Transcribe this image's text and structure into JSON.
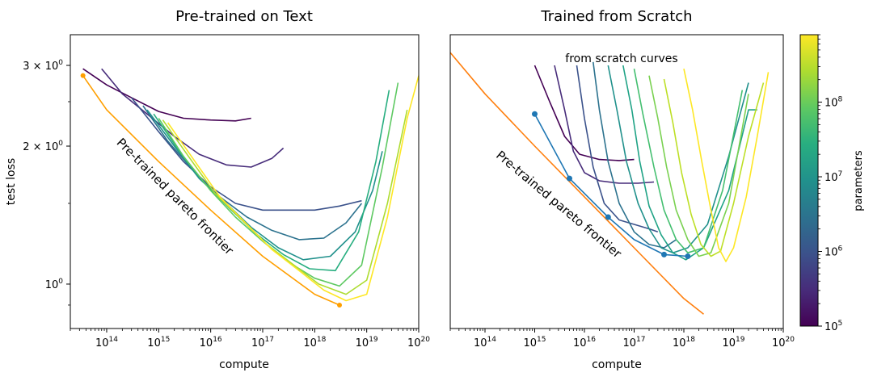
{
  "chart_data": [
    {
      "type": "line",
      "title": "Pre-trained on Text",
      "xlabel": "compute",
      "ylabel": "test loss",
      "xscale": "log",
      "yscale": "log",
      "xlim": [
        20000000000000.0,
        1e+20
      ],
      "ylim": [
        0.8,
        3.5
      ],
      "x_ticks": [
        {
          "exp": 14,
          "label_base": "10",
          "label_exp": "14"
        },
        {
          "exp": 15,
          "label_base": "10",
          "label_exp": "15"
        },
        {
          "exp": 16,
          "label_base": "10",
          "label_exp": "16"
        },
        {
          "exp": 17,
          "label_base": "10",
          "label_exp": "17"
        },
        {
          "exp": 18,
          "label_base": "10",
          "label_exp": "18"
        },
        {
          "exp": 19,
          "label_base": "10",
          "label_exp": "19"
        },
        {
          "exp": 20,
          "label_base": "10",
          "label_exp": "20"
        }
      ],
      "y_ticks": [
        {
          "value": 3,
          "label": "3 × 10",
          "label_exp": "0"
        },
        {
          "value": 2,
          "label": "2 × 10",
          "label_exp": "0"
        },
        {
          "value": 1,
          "label": "10",
          "label_exp": "0"
        }
      ],
      "annotation": {
        "text": "Pre-trained pareto frontier",
        "color": "#000000"
      },
      "frontier": {
        "color": "#ff9f00",
        "x": [
          35000000000000.0,
          100000000000000.0,
          1000000000000000.0,
          1e+16,
          1e+17,
          1e+18,
          3e+18
        ],
        "y": [
          2.85,
          2.4,
          1.85,
          1.45,
          1.15,
          0.95,
          0.9
        ]
      },
      "series": [
        {
          "params": 100000.0,
          "color": "#440154",
          "x": [
            35000000000000.0,
            100000000000000.0,
            300000000000000.0,
            1000000000000000.0,
            3000000000000000.0,
            1e+16,
            3e+16,
            6e+16
          ],
          "y": [
            2.95,
            2.72,
            2.55,
            2.38,
            2.3,
            2.28,
            2.27,
            2.3
          ]
        },
        {
          "params": 300000.0,
          "color": "#472c7a",
          "x": [
            80000000000000.0,
            200000000000000.0,
            600000000000000.0,
            2000000000000000.0,
            6000000000000000.0,
            2e+16,
            6e+16,
            1.5e+17,
            2.5e+17
          ],
          "y": [
            2.95,
            2.6,
            2.35,
            2.1,
            1.92,
            1.82,
            1.8,
            1.88,
            1.98
          ]
        },
        {
          "params": 1000000.0,
          "color": "#3b528b",
          "x": [
            300000000000000.0,
            1000000000000000.0,
            3000000000000000.0,
            1e+16,
            3e+16,
            1e+17,
            3e+17,
            1e+18,
            3e+18,
            8e+18
          ],
          "y": [
            2.55,
            2.15,
            1.85,
            1.63,
            1.5,
            1.45,
            1.45,
            1.45,
            1.48,
            1.52
          ]
        },
        {
          "params": 3000000.0,
          "color": "#2c728e",
          "x": [
            500000000000000.0,
            1500000000000000.0,
            5000000000000000.0,
            1.5e+16,
            5e+16,
            1.5e+17,
            5e+17,
            1.5e+18,
            4e+18,
            8e+18
          ],
          "y": [
            2.45,
            2.05,
            1.75,
            1.55,
            1.4,
            1.31,
            1.25,
            1.26,
            1.36,
            1.5
          ]
        },
        {
          "params": 10000000.0,
          "color": "#21918c",
          "x": [
            600000000000000.0,
            2000000000000000.0,
            6000000000000000.0,
            2e+16,
            6e+16,
            2e+17,
            6e+17,
            2e+18,
            6e+18,
            1.3e+19,
            2e+19
          ],
          "y": [
            2.4,
            2.0,
            1.7,
            1.5,
            1.33,
            1.2,
            1.13,
            1.15,
            1.3,
            1.6,
            1.95
          ]
        },
        {
          "params": 30000000.0,
          "color": "#28ae80",
          "x": [
            800000000000000.0,
            2500000000000000.0,
            8000000000000000.0,
            2.5e+16,
            8e+16,
            2.5e+17,
            8e+17,
            2.5e+18,
            7e+18,
            1.5e+19,
            2.7e+19
          ],
          "y": [
            2.35,
            1.95,
            1.65,
            1.45,
            1.28,
            1.16,
            1.08,
            1.07,
            1.3,
            1.85,
            2.65
          ]
        },
        {
          "params": 100000000.0,
          "color": "#5ec962",
          "x": [
            1000000000000000.0,
            3000000000000000.0,
            1e+16,
            3e+16,
            1e+17,
            3e+17,
            1e+18,
            3e+18,
            8e+18,
            2e+19,
            4e+19
          ],
          "y": [
            2.3,
            1.9,
            1.6,
            1.4,
            1.24,
            1.12,
            1.03,
            0.99,
            1.1,
            1.8,
            2.75
          ]
        },
        {
          "params": 300000000.0,
          "color": "#addc30",
          "x": [
            1200000000000000.0,
            4000000000000000.0,
            1.2e+16,
            4e+16,
            1.2e+17,
            4e+17,
            1.2e+18,
            4e+18,
            1e+19,
            2.5e+19,
            6e+19
          ],
          "y": [
            2.28,
            1.88,
            1.58,
            1.38,
            1.22,
            1.1,
            1.0,
            0.95,
            1.02,
            1.5,
            2.4
          ]
        },
        {
          "params": 800000000.0,
          "color": "#fde725",
          "x": [
            1500000000000000.0,
            5000000000000000.0,
            1.5e+16,
            5e+16,
            1.5e+17,
            5e+17,
            1.5e+18,
            4e+18,
            1e+19,
            2.5e+19,
            6e+19,
            1e+20
          ],
          "y": [
            2.25,
            1.85,
            1.55,
            1.35,
            1.19,
            1.07,
            0.97,
            0.92,
            0.95,
            1.4,
            2.3,
            2.85
          ]
        }
      ]
    },
    {
      "type": "line",
      "title": "Trained from Scratch",
      "xlabel": "compute",
      "ylabel": "",
      "xscale": "log",
      "yscale": "log",
      "xlim": [
        20000000000000.0,
        1e+20
      ],
      "ylim": [
        0.8,
        3.5
      ],
      "x_ticks": [
        {
          "exp": 14,
          "label_base": "10",
          "label_exp": "14"
        },
        {
          "exp": 15,
          "label_base": "10",
          "label_exp": "15"
        },
        {
          "exp": 16,
          "label_base": "10",
          "label_exp": "16"
        },
        {
          "exp": 17,
          "label_base": "10",
          "label_exp": "17"
        },
        {
          "exp": 18,
          "label_base": "10",
          "label_exp": "18"
        },
        {
          "exp": 19,
          "label_base": "10",
          "label_exp": "19"
        },
        {
          "exp": 20,
          "label_base": "10",
          "label_exp": "20"
        }
      ],
      "annotations": [
        {
          "text": "from scratch curves"
        },
        {
          "text": "Pre-trained pareto frontier"
        }
      ],
      "frontier": {
        "color": "#ff7f0e",
        "x": [
          20000000000000.0,
          100000000000000.0,
          1000000000000000.0,
          1e+16,
          1e+17,
          1e+18,
          2.5e+18
        ],
        "y": [
          3.2,
          2.6,
          2.0,
          1.55,
          1.2,
          0.93,
          0.86
        ]
      },
      "scratch_frontier": {
        "color": "#1f77b4",
        "x": [
          1000000000000000.0,
          5000000000000000.0,
          3e+16,
          1e+17,
          4e+17,
          1.2e+18
        ],
        "y": [
          2.35,
          1.7,
          1.4,
          1.25,
          1.16,
          1.15
        ],
        "markers": [
          [
            1000000000000000.0,
            2.35
          ],
          [
            5000000000000000.0,
            1.7
          ],
          [
            3e+16,
            1.4
          ],
          [
            4e+17,
            1.16
          ],
          [
            1.2e+18,
            1.15
          ]
        ]
      },
      "series": [
        {
          "params": 100000.0,
          "color": "#440154",
          "x": [
            1000000000000000.0,
            2000000000000000.0,
            4000000000000000.0,
            8000000000000000.0,
            2e+16,
            5e+16,
            1e+17
          ],
          "y": [
            3.0,
            2.5,
            2.1,
            1.92,
            1.87,
            1.86,
            1.87
          ]
        },
        {
          "params": 300000.0,
          "color": "#472c7a",
          "x": [
            2500000000000000.0,
            4000000000000000.0,
            6000000000000000.0,
            1e+16,
            2e+16,
            5e+16,
            1.2e+17,
            2.5e+17
          ],
          "y": [
            3.0,
            2.4,
            1.95,
            1.75,
            1.68,
            1.66,
            1.66,
            1.67
          ]
        },
        {
          "params": 1000000.0,
          "color": "#3b528b",
          "x": [
            7000000000000000.0,
            1e+16,
            1.5e+16,
            2.5e+16,
            5e+16,
            1e+17,
            2e+17,
            3e+17
          ],
          "y": [
            3.0,
            2.3,
            1.8,
            1.5,
            1.38,
            1.35,
            1.32,
            1.3
          ]
        },
        {
          "params": 3000000.0,
          "color": "#2c728e",
          "x": [
            1.5e+16,
            2e+16,
            3e+16,
            5e+16,
            1e+17,
            2e+17,
            4e+17,
            7e+17
          ],
          "y": [
            3.05,
            2.4,
            1.85,
            1.5,
            1.3,
            1.22,
            1.2,
            1.25
          ]
        },
        {
          "params": 10000000.0,
          "color": "#21918c",
          "x": [
            3e+16,
            4.5e+16,
            7e+16,
            1.2e+17,
            2e+17,
            3.5e+17,
            6e+17,
            1.2e+18,
            3e+18,
            8e+18,
            2e+19
          ],
          "y": [
            3.0,
            2.4,
            1.85,
            1.5,
            1.32,
            1.2,
            1.17,
            1.2,
            1.35,
            1.9,
            2.75
          ]
        },
        {
          "params": 20000000.0,
          "color": "#20a386",
          "x": [
            6e+16,
            9e+16,
            1.3e+17,
            2e+17,
            3.5e+17,
            6e+17,
            1.1e+18,
            2.5e+18,
            8e+18,
            2e+19,
            3e+19
          ],
          "y": [
            3.0,
            2.4,
            1.85,
            1.48,
            1.28,
            1.17,
            1.13,
            1.2,
            1.6,
            2.4,
            2.4
          ]
        },
        {
          "params": 50000000.0,
          "color": "#44bf70",
          "x": [
            1e+17,
            1.5e+17,
            2.5e+17,
            4e+17,
            7e+17,
            1.2e+18,
            2.5e+18,
            6e+18,
            1.5e+19
          ],
          "y": [
            2.95,
            2.35,
            1.8,
            1.45,
            1.25,
            1.17,
            1.2,
            1.6,
            2.65
          ]
        },
        {
          "params": 100000000.0,
          "color": "#7ad151",
          "x": [
            2e+17,
            3e+17,
            4.5e+17,
            7e+17,
            1.2e+18,
            2e+18,
            3.5e+18,
            8e+18,
            2e+19
          ],
          "y": [
            2.85,
            2.3,
            1.8,
            1.45,
            1.25,
            1.15,
            1.17,
            1.5,
            2.6
          ]
        },
        {
          "params": 300000000.0,
          "color": "#bddf26",
          "x": [
            4e+17,
            6e+17,
            9e+17,
            1.4e+18,
            2.2e+18,
            3.5e+18,
            5.5e+18,
            1e+19,
            2e+19,
            4e+19
          ],
          "y": [
            2.8,
            2.25,
            1.75,
            1.42,
            1.22,
            1.15,
            1.18,
            1.5,
            2.1,
            2.75
          ]
        },
        {
          "params": 800000000.0,
          "color": "#fde725",
          "x": [
            1e+18,
            1.5e+18,
            2.3e+18,
            3.5e+18,
            5e+18,
            7e+18,
            1e+19,
            1.8e+19,
            3e+19,
            5e+19
          ],
          "y": [
            2.95,
            2.4,
            1.85,
            1.45,
            1.2,
            1.12,
            1.2,
            1.55,
            2.1,
            2.9
          ]
        }
      ]
    }
  ],
  "colorbar": {
    "label": "parameters",
    "scale": "log",
    "range": [
      100000.0,
      800000000.0
    ],
    "colormap": "viridis",
    "colors": [
      "#440154",
      "#472c7a",
      "#3b528b",
      "#2c728e",
      "#21918c",
      "#28ae80",
      "#5ec962",
      "#addc30",
      "#fde725"
    ],
    "ticks": [
      {
        "value": 100000.0,
        "label_base": "10",
        "label_exp": "5"
      },
      {
        "value": 1000000.0,
        "label_base": "10",
        "label_exp": "6"
      },
      {
        "value": 10000000.0,
        "label_base": "10",
        "label_exp": "7"
      },
      {
        "value": 100000000.0,
        "label_base": "10",
        "label_exp": "8"
      }
    ]
  }
}
